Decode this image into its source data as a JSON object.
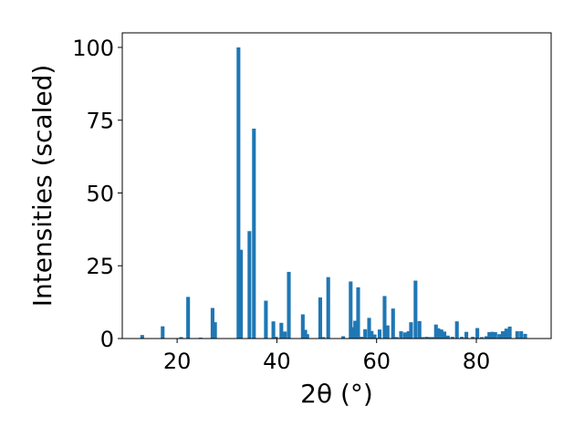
{
  "chart_data": {
    "type": "bar",
    "title": "",
    "xlabel": "2θ (°)",
    "ylabel": "Intensities (scaled)",
    "xlim": [
      9,
      95
    ],
    "ylim": [
      0,
      105
    ],
    "xticks": [
      20,
      40,
      60,
      80
    ],
    "yticks": [
      0,
      25,
      50,
      75,
      100
    ],
    "grid": false,
    "bar_color": "#1f77b4",
    "bar_width_deg": 0.75,
    "x": [
      13.0,
      17.1,
      20.8,
      22.2,
      24.7,
      27.1,
      27.6,
      32.3,
      32.8,
      34.5,
      35.4,
      37.8,
      39.3,
      39.8,
      40.9,
      41.6,
      42.4,
      45.2,
      45.7,
      46.1,
      48.7,
      49.3,
      50.3,
      53.3,
      54.8,
      55.2,
      55.7,
      56.3,
      57.0,
      57.7,
      58.5,
      59.0,
      59.6,
      60.6,
      61.6,
      62.2,
      63.3,
      64.0,
      64.9,
      65.7,
      66.4,
      66.9,
      67.8,
      68.6,
      69.2,
      70.0,
      70.6,
      71.3,
      71.9,
      72.4,
      73.0,
      73.6,
      74.3,
      75.2,
      76.1,
      77.1,
      78.0,
      79.3,
      80.2,
      81.1,
      82.0,
      82.6,
      83.2,
      83.8,
      84.6,
      85.3,
      86.0,
      86.7,
      88.2,
      89.0,
      89.8
    ],
    "values": [
      1.2,
      4.2,
      0.5,
      14.3,
      0.3,
      10.5,
      5.6,
      100,
      30.5,
      36.9,
      72.1,
      13.0,
      5.9,
      0.6,
      5.4,
      2.4,
      22.9,
      8.3,
      3.0,
      1.5,
      14.1,
      0.5,
      21.1,
      0.8,
      19.6,
      3.9,
      6.1,
      17.6,
      0.6,
      3.2,
      7.1,
      2.6,
      1.4,
      3.1,
      14.6,
      4.5,
      10.3,
      0.5,
      2.5,
      2.1,
      2.5,
      5.6,
      19.9,
      6.0,
      0.5,
      0.6,
      0.5,
      0.5,
      4.8,
      3.5,
      3.1,
      2.4,
      1.0,
      0.6,
      5.9,
      0.6,
      2.3,
      0.6,
      3.6,
      0.5,
      0.8,
      2.2,
      2.3,
      2.2,
      1.5,
      2.5,
      3.4,
      4.1,
      2.5,
      2.5,
      1.6
    ]
  }
}
